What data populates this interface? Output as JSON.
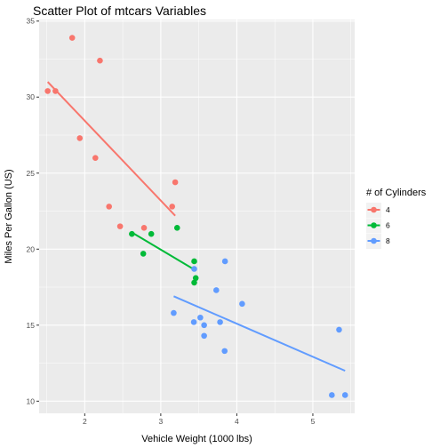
{
  "chart_data": {
    "type": "scatter",
    "title": "Scatter Plot of mtcars Variables",
    "xlabel": "Vehicle Weight (1000 lbs)",
    "ylabel": "Miles Per Gallon (US)",
    "xlim": [
      1.4,
      5.55
    ],
    "ylim": [
      9.2,
      35.1
    ],
    "x_ticks": [
      2,
      3,
      4,
      5
    ],
    "y_ticks": [
      10,
      15,
      20,
      25,
      30,
      35
    ],
    "grid": true,
    "legend": {
      "title": "# of Cylinders",
      "position": "right"
    },
    "series": [
      {
        "name": "4",
        "color": "#F8766D",
        "points": [
          [
            1.513,
            30.4
          ],
          [
            1.615,
            30.4
          ],
          [
            1.835,
            33.9
          ],
          [
            1.935,
            27.3
          ],
          [
            2.14,
            26.0
          ],
          [
            2.2,
            32.4
          ],
          [
            2.32,
            22.8
          ],
          [
            2.465,
            21.5
          ],
          [
            2.78,
            21.4
          ],
          [
            3.15,
            22.8
          ],
          [
            3.19,
            24.4
          ]
        ],
        "fit": [
          [
            1.513,
            31.0
          ],
          [
            3.19,
            22.2
          ]
        ]
      },
      {
        "name": "6",
        "color": "#00BA38",
        "points": [
          [
            2.62,
            21.0
          ],
          [
            2.77,
            19.7
          ],
          [
            2.875,
            21.0
          ],
          [
            3.215,
            21.4
          ],
          [
            3.44,
            17.8
          ],
          [
            3.44,
            19.2
          ],
          [
            3.46,
            18.1
          ]
        ],
        "fit": [
          [
            2.62,
            21.1
          ],
          [
            3.46,
            18.6
          ]
        ]
      },
      {
        "name": "8",
        "color": "#619CFF",
        "points": [
          [
            3.17,
            15.8
          ],
          [
            3.435,
            15.2
          ],
          [
            3.44,
            18.7
          ],
          [
            3.52,
            15.5
          ],
          [
            3.57,
            14.3
          ],
          [
            3.57,
            15.0
          ],
          [
            3.73,
            17.3
          ],
          [
            3.78,
            15.2
          ],
          [
            3.84,
            13.3
          ],
          [
            3.845,
            19.2
          ],
          [
            4.07,
            16.4
          ],
          [
            5.25,
            10.4
          ],
          [
            5.345,
            14.7
          ],
          [
            5.424,
            10.4
          ]
        ],
        "fit": [
          [
            3.17,
            16.9
          ],
          [
            5.424,
            12.0
          ]
        ]
      }
    ]
  }
}
